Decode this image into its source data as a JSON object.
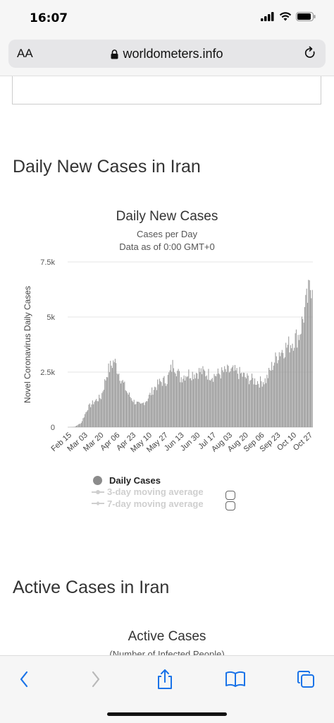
{
  "status_bar": {
    "time": "16:07"
  },
  "browser": {
    "text_size_label": "AA",
    "domain": "worldometers.info"
  },
  "sections": {
    "daily_title": "Daily New Cases in Iran",
    "active_title": "Active Cases in Iran"
  },
  "chart_data": {
    "type": "bar",
    "title": "Daily New Cases",
    "subtitle_1": "Cases per Day",
    "subtitle_2": "Data as of 0:00 GMT+0",
    "ylabel": "Novel Coronavirus Daily Cases",
    "xlabel": "",
    "ylim": [
      0,
      7500
    ],
    "yticks": [
      "0",
      "2.5k",
      "5k",
      "7.5k"
    ],
    "x_tick_labels": [
      "Feb 15",
      "Mar 03",
      "Mar 20",
      "Apr 06",
      "Apr 23",
      "May 10",
      "May 27",
      "Jun 13",
      "Jun 30",
      "Jul 17",
      "Aug 03",
      "Aug 20",
      "Sep 06",
      "Sep 23",
      "Oct 10",
      "Oct 27"
    ],
    "grid": true,
    "series": [
      {
        "name": "Daily Cases",
        "color": "#999999"
      }
    ],
    "weekly_series_points": [
      [
        "Feb 15",
        0
      ],
      [
        "Feb 22",
        15
      ],
      [
        "Feb 29",
        200
      ],
      [
        "Mar 07",
        900
      ],
      [
        "Mar 14",
        1200
      ],
      [
        "Mar 21",
        1400
      ],
      [
        "Mar 28",
        2600
      ],
      [
        "Apr 02",
        3100
      ],
      [
        "Apr 09",
        2300
      ],
      [
        "Apr 16",
        1600
      ],
      [
        "Apr 23",
        1200
      ],
      [
        "Apr 30",
        1000
      ],
      [
        "May 07",
        1300
      ],
      [
        "May 14",
        1800
      ],
      [
        "May 21",
        2100
      ],
      [
        "May 28",
        2200
      ],
      [
        "Jun 04",
        3000
      ],
      [
        "Jun 11",
        2300
      ],
      [
        "Jun 18",
        2500
      ],
      [
        "Jun 25",
        2500
      ],
      [
        "Jul 02",
        2600
      ],
      [
        "Jul 09",
        2500
      ],
      [
        "Jul 16",
        2400
      ],
      [
        "Jul 23",
        2500
      ],
      [
        "Jul 30",
        2600
      ],
      [
        "Aug 06",
        2600
      ],
      [
        "Aug 13",
        2500
      ],
      [
        "Aug 20",
        2300
      ],
      [
        "Aug 27",
        2200
      ],
      [
        "Sep 03",
        2100
      ],
      [
        "Sep 10",
        2200
      ],
      [
        "Sep 17",
        2900
      ],
      [
        "Sep 24",
        3500
      ],
      [
        "Oct 01",
        3700
      ],
      [
        "Oct 08",
        4000
      ],
      [
        "Oct 15",
        4300
      ],
      [
        "Oct 22",
        5600
      ],
      [
        "Oct 29",
        6900
      ]
    ]
  },
  "legend": {
    "daily": "Daily Cases",
    "ma3": "3-day moving average",
    "ma7": "7-day moving average"
  },
  "active_chart": {
    "title": "Active Cases",
    "subtitle": "(Number of Infected People)"
  },
  "icons": {
    "back": "chevron-left-icon",
    "forward": "chevron-right-icon",
    "share": "share-icon",
    "bookmarks": "book-icon",
    "tabs": "tabs-icon"
  }
}
